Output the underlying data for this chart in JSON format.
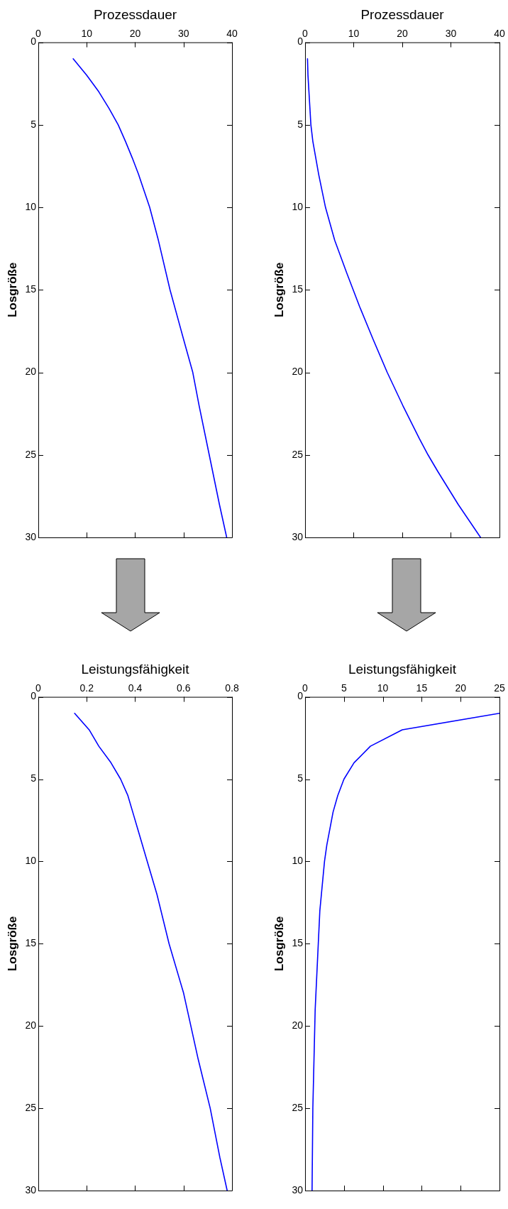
{
  "chart_data": [
    {
      "type": "line",
      "xlabel": "Prozessdauer",
      "ylabel": "Losgröße",
      "xlim": [
        0,
        40
      ],
      "xticks": [
        0,
        10,
        20,
        30,
        40
      ],
      "ylim": [
        30,
        0
      ],
      "yticks": [
        0,
        5,
        10,
        15,
        20,
        25,
        30
      ],
      "marker": "none",
      "x": [
        7.2,
        10.0,
        12.5,
        14.6,
        16.5,
        18.0,
        19.4,
        20.7,
        23.0,
        24.8,
        27.2,
        30.0,
        31.9,
        33.2,
        35.3,
        37.4,
        38.9
      ],
      "series": [
        {
          "color": "#0000ff",
          "values": [
            1,
            2,
            3,
            4,
            5,
            6,
            7,
            8,
            10,
            12,
            15,
            18,
            20,
            22,
            25,
            28,
            30
          ]
        }
      ]
    },
    {
      "type": "line",
      "xlabel": "Prozessdauer",
      "ylabel": "Losgröße",
      "xlim": [
        0,
        40
      ],
      "xticks": [
        0,
        10,
        20,
        30,
        40
      ],
      "ylim": [
        30,
        0
      ],
      "yticks": [
        0,
        5,
        10,
        15,
        20,
        25,
        30
      ],
      "marker": "none",
      "x": [
        0.5,
        0.6,
        0.8,
        1.0,
        1.2,
        1.6,
        2.2,
        2.8,
        3.5,
        4.2,
        6.1,
        8.6,
        9.9,
        11.2,
        14.0,
        16.9,
        20.1,
        23.5,
        25.3,
        27.3,
        31.5,
        36.1
      ],
      "series": [
        {
          "color": "#0000ff",
          "values": [
            1,
            2,
            3,
            4,
            5,
            6,
            7,
            8,
            9,
            10,
            12,
            14,
            15,
            16,
            18,
            20,
            22,
            24,
            25,
            26,
            28,
            30
          ]
        }
      ]
    },
    {
      "type": "line",
      "xlabel": "Leistungsfähigkeit",
      "ylabel": "Losgröße",
      "xlim": [
        0,
        0.8
      ],
      "xticks": [
        0,
        0.2,
        0.4,
        0.6,
        0.8
      ],
      "ylim": [
        30,
        0
      ],
      "yticks": [
        0,
        5,
        10,
        15,
        20,
        25,
        30
      ],
      "marker": "none",
      "x": [
        0.15,
        0.21,
        0.25,
        0.3,
        0.34,
        0.37,
        0.39,
        0.41,
        0.43,
        0.45,
        0.49,
        0.54,
        0.6,
        0.63,
        0.66,
        0.71,
        0.75,
        0.78
      ],
      "series": [
        {
          "color": "#0000ff",
          "values": [
            1,
            2,
            3,
            4,
            5,
            6,
            7,
            8,
            9,
            10,
            12,
            15,
            18,
            20,
            22,
            25,
            28,
            30
          ]
        }
      ]
    },
    {
      "type": "line",
      "xlabel": "Leistungsfähigkeit",
      "ylabel": "Losgröße",
      "xlim": [
        0,
        25
      ],
      "xticks": [
        0,
        5,
        10,
        15,
        20,
        25
      ],
      "ylim": [
        30,
        0
      ],
      "yticks": [
        0,
        5,
        10,
        15,
        20,
        25,
        30
      ],
      "marker": "none",
      "x": [
        25,
        12.5,
        8.4,
        6.3,
        5.0,
        4.2,
        3.6,
        3.2,
        2.8,
        2.5,
        2.3,
        2.1,
        1.9,
        1.8,
        1.7,
        1.6,
        1.5,
        1.4,
        1.3,
        1.2,
        1.1,
        1.0,
        0.9
      ],
      "series": [
        {
          "color": "#0000ff",
          "values": [
            1,
            2,
            3,
            4,
            5,
            6,
            7,
            8,
            9,
            10,
            11,
            12,
            13,
            14,
            15,
            16,
            17,
            18,
            19,
            21,
            23,
            25,
            30
          ]
        }
      ]
    }
  ]
}
